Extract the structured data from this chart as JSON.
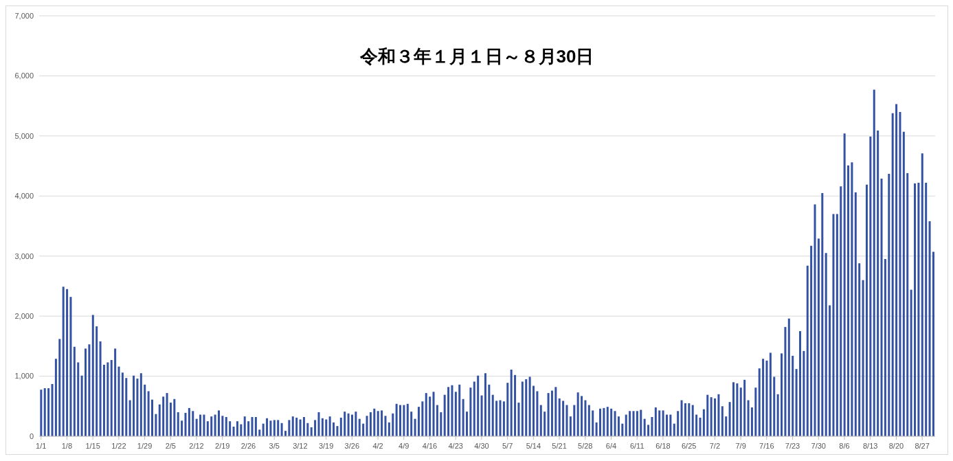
{
  "chart_data": {
    "type": "bar",
    "title": "令和３年１月１日～８月30日",
    "categories": [
      "1/1",
      null,
      null,
      null,
      null,
      null,
      null,
      "1/8",
      null,
      null,
      null,
      null,
      null,
      null,
      "1/15",
      null,
      null,
      null,
      null,
      null,
      null,
      "1/22",
      null,
      null,
      null,
      null,
      null,
      null,
      "1/29",
      null,
      null,
      null,
      null,
      null,
      null,
      "2/5",
      null,
      null,
      null,
      null,
      null,
      null,
      "2/12",
      null,
      null,
      null,
      null,
      null,
      null,
      "2/19",
      null,
      null,
      null,
      null,
      null,
      null,
      "2/26",
      null,
      null,
      null,
      null,
      null,
      null,
      "3/5",
      null,
      null,
      null,
      null,
      null,
      null,
      "3/12",
      null,
      null,
      null,
      null,
      null,
      null,
      "3/19",
      null,
      null,
      null,
      null,
      null,
      null,
      "3/26",
      null,
      null,
      null,
      null,
      null,
      null,
      "4/2",
      null,
      null,
      null,
      null,
      null,
      null,
      "4/9",
      null,
      null,
      null,
      null,
      null,
      null,
      "4/16",
      null,
      null,
      null,
      null,
      null,
      null,
      "4/23",
      null,
      null,
      null,
      null,
      null,
      null,
      "4/30",
      null,
      null,
      null,
      null,
      null,
      null,
      "5/7",
      null,
      null,
      null,
      null,
      null,
      null,
      "5/14",
      null,
      null,
      null,
      null,
      null,
      null,
      "5/21",
      null,
      null,
      null,
      null,
      null,
      null,
      "5/28",
      null,
      null,
      null,
      null,
      null,
      null,
      "6/4",
      null,
      null,
      null,
      null,
      null,
      null,
      "6/11",
      null,
      null,
      null,
      null,
      null,
      null,
      "6/18",
      null,
      null,
      null,
      null,
      null,
      null,
      "6/25",
      null,
      null,
      null,
      null,
      null,
      null,
      "7/2",
      null,
      null,
      null,
      null,
      null,
      null,
      "7/9",
      null,
      null,
      null,
      null,
      null,
      null,
      "7/16",
      null,
      null,
      null,
      null,
      null,
      null,
      "7/23",
      null,
      null,
      null,
      null,
      null,
      null,
      "7/30",
      null,
      null,
      null,
      null,
      null,
      null,
      "8/6",
      null,
      null,
      null,
      null,
      null,
      null,
      "8/13",
      null,
      null,
      null,
      null,
      null,
      null,
      "8/20",
      null,
      null,
      null,
      null,
      null,
      null,
      "8/27",
      null,
      null,
      null
    ],
    "values": [
      776,
      800,
      800,
      870,
      1290,
      1620,
      2490,
      2450,
      2320,
      1490,
      1230,
      1010,
      1460,
      1530,
      2020,
      1830,
      1580,
      1190,
      1230,
      1270,
      1460,
      1160,
      1060,
      970,
      600,
      1010,
      960,
      1050,
      860,
      750,
      610,
      370,
      530,
      660,
      720,
      560,
      620,
      400,
      260,
      390,
      470,
      420,
      290,
      360,
      360,
      250,
      330,
      360,
      430,
      340,
      320,
      250,
      160,
      250,
      200,
      330,
      250,
      320,
      320,
      110,
      210,
      300,
      260,
      270,
      270,
      220,
      90,
      270,
      330,
      310,
      280,
      320,
      220,
      150,
      270,
      400,
      300,
      280,
      330,
      230,
      170,
      310,
      410,
      380,
      360,
      410,
      290,
      210,
      340,
      400,
      460,
      420,
      430,
      340,
      230,
      380,
      540,
      520,
      520,
      540,
      410,
      290,
      490,
      580,
      720,
      660,
      740,
      520,
      400,
      690,
      820,
      850,
      740,
      860,
      620,
      410,
      810,
      910,
      1010,
      680,
      1050,
      860,
      690,
      590,
      600,
      580,
      890,
      1110,
      1020,
      560,
      910,
      950,
      990,
      840,
      750,
      520,
      410,
      720,
      760,
      820,
      630,
      590,
      520,
      330,
      520,
      730,
      670,
      600,
      520,
      430,
      230,
      460,
      470,
      490,
      460,
      420,
      330,
      210,
      360,
      420,
      420,
      420,
      440,
      290,
      190,
      320,
      480,
      430,
      430,
      360,
      360,
      210,
      420,
      600,
      550,
      550,
      520,
      360,
      310,
      450,
      690,
      650,
      630,
      700,
      500,
      330,
      570,
      900,
      880,
      810,
      940,
      600,
      480,
      810,
      1130,
      1290,
      1260,
      1390,
      990,
      700,
      1380,
      1820,
      1960,
      1340,
      1120,
      1750,
      1420,
      2840,
      3170,
      3860,
      3290,
      4050,
      3050,
      2180,
      3700,
      3700,
      4160,
      5040,
      4510,
      4560,
      4060,
      2880,
      2600,
      4190,
      4990,
      5770,
      5090,
      4290,
      2950,
      4370,
      5380,
      5530,
      5400,
      5070,
      4380,
      2440,
      4210,
      4220,
      4710,
      4220,
      3580,
      3070
    ],
    "color": "#3452a4",
    "ylim": [
      0,
      7000
    ],
    "yticks": [
      0,
      {
        "value": 1000,
        "label": "1,000"
      },
      {
        "value": 2000,
        "label": "2,000"
      },
      {
        "value": 3000,
        "label": "3,000"
      },
      {
        "value": 4000,
        "label": "4,000"
      },
      {
        "value": 5000,
        "label": "5,000"
      },
      {
        "value": 6000,
        "label": "6,000"
      },
      {
        "value": 7000,
        "label": "7,000"
      }
    ],
    "grid": "y"
  }
}
